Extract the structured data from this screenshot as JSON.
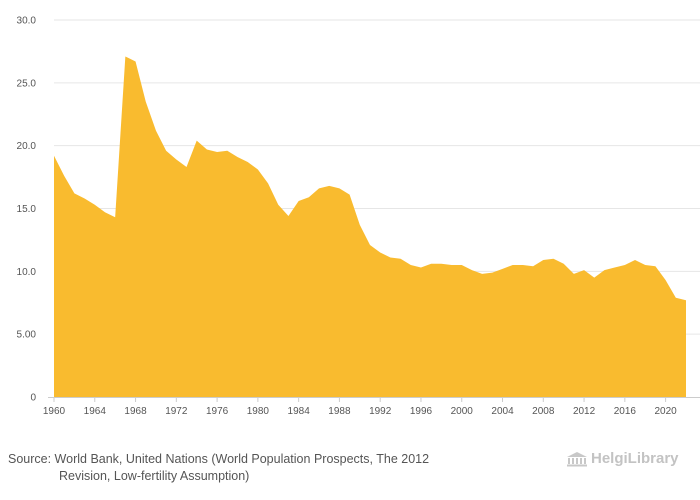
{
  "chart_data": {
    "type": "area",
    "title": "",
    "xlabel": "",
    "ylabel": "",
    "ylim": [
      0,
      30
    ],
    "yticks": [
      0,
      5,
      10,
      15,
      20,
      25,
      30
    ],
    "ytick_labels": [
      "0",
      "5.00",
      "10.0",
      "15.0",
      "20.0",
      "25.0",
      "30.0"
    ],
    "xticks": [
      1960,
      1964,
      1968,
      1972,
      1976,
      1980,
      1984,
      1988,
      1992,
      1996,
      2000,
      2004,
      2008,
      2012,
      2016,
      2020
    ],
    "xtick_labels": [
      "1960",
      "1964",
      "1968",
      "1972",
      "1976",
      "1980",
      "1984",
      "1988",
      "1992",
      "1996",
      "2000",
      "2004",
      "2008",
      "2012",
      "2016",
      "2020"
    ],
    "xlim": [
      1960,
      2022
    ],
    "fill_color": "#f9bb2f",
    "grid": true,
    "series": [
      {
        "name": "",
        "x": [
          1960,
          1961,
          1962,
          1963,
          1964,
          1965,
          1966,
          1967,
          1968,
          1969,
          1970,
          1971,
          1972,
          1973,
          1974,
          1975,
          1976,
          1977,
          1978,
          1979,
          1980,
          1981,
          1982,
          1983,
          1984,
          1985,
          1986,
          1987,
          1988,
          1989,
          1990,
          1991,
          1992,
          1993,
          1994,
          1995,
          1996,
          1997,
          1998,
          1999,
          2000,
          2001,
          2002,
          2003,
          2004,
          2005,
          2006,
          2007,
          2008,
          2009,
          2010,
          2011,
          2012,
          2013,
          2014,
          2015,
          2016,
          2017,
          2018,
          2019,
          2020,
          2021,
          2022
        ],
        "values": [
          19.2,
          17.6,
          16.2,
          15.8,
          15.3,
          14.7,
          14.3,
          27.1,
          26.7,
          23.5,
          21.2,
          19.6,
          18.9,
          18.3,
          20.4,
          19.7,
          19.5,
          19.6,
          19.1,
          18.7,
          18.1,
          17.0,
          15.3,
          14.4,
          15.6,
          15.9,
          16.6,
          16.8,
          16.6,
          16.1,
          13.7,
          12.1,
          11.5,
          11.1,
          11.0,
          10.5,
          10.3,
          10.6,
          10.6,
          10.5,
          10.5,
          10.1,
          9.8,
          9.9,
          10.2,
          10.5,
          10.5,
          10.4,
          10.9,
          11.0,
          10.6,
          9.8,
          10.1,
          9.5,
          10.1,
          10.3,
          10.5,
          10.9,
          10.5,
          10.4,
          9.3,
          7.9,
          7.7
        ]
      }
    ]
  },
  "footer": {
    "source_line1": "Source: World Bank, United Nations (World Population Prospects, The 2012",
    "source_line2": "Revision, Low-fertility Assumption)",
    "brand": "HelgiLibrary"
  }
}
